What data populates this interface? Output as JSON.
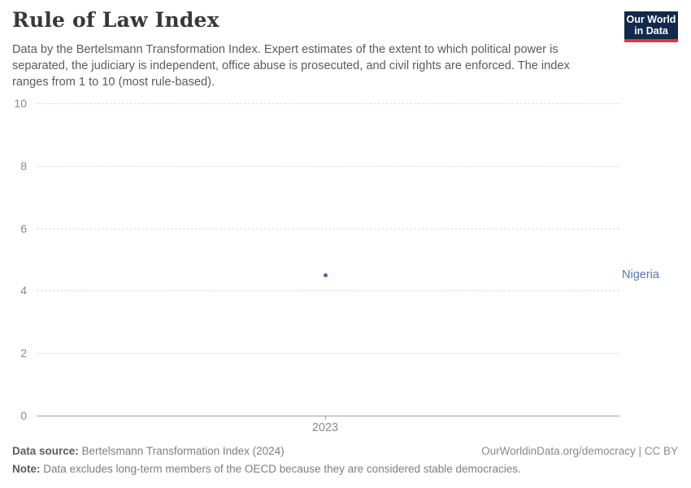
{
  "header": {
    "title": "Rule of Law Index",
    "subtitle": "Data by the Bertelsmann Transformation Index. Expert estimates of the extent to which political power is separated, the judiciary is independent, office abuse is prosecuted, and civil rights are enforced. The index ranges from 1 to 10 (most rule-based).",
    "logo": {
      "line1": "Our World",
      "line2": "in Data",
      "bg_color": "#12294d",
      "accent_color": "#e5343d"
    }
  },
  "chart_data": {
    "type": "scatter",
    "title": "Rule of Law Index",
    "x": [
      2023
    ],
    "x_ticks": [
      "2023"
    ],
    "y_ticks": [
      0,
      2,
      4,
      6,
      8,
      10
    ],
    "ylim": [
      0,
      10
    ],
    "xlabel": "",
    "ylabel": "",
    "grid": "horizontal-dashed",
    "legend_position": "right-of-point",
    "series": [
      {
        "name": "Nigeria",
        "color": "#4c6a9c",
        "label_color": "#5878af",
        "points": [
          {
            "x": 2023,
            "y": 4.5
          }
        ]
      }
    ]
  },
  "footer": {
    "source_label": "Data source:",
    "source_text": " Bertelsmann Transformation Index (2024)",
    "rights_text": "OurWorldinData.org/democracy | CC BY",
    "note_label": "Note:",
    "note_text": " Data excludes long-term members of the OECD because they are considered stable democracies."
  }
}
